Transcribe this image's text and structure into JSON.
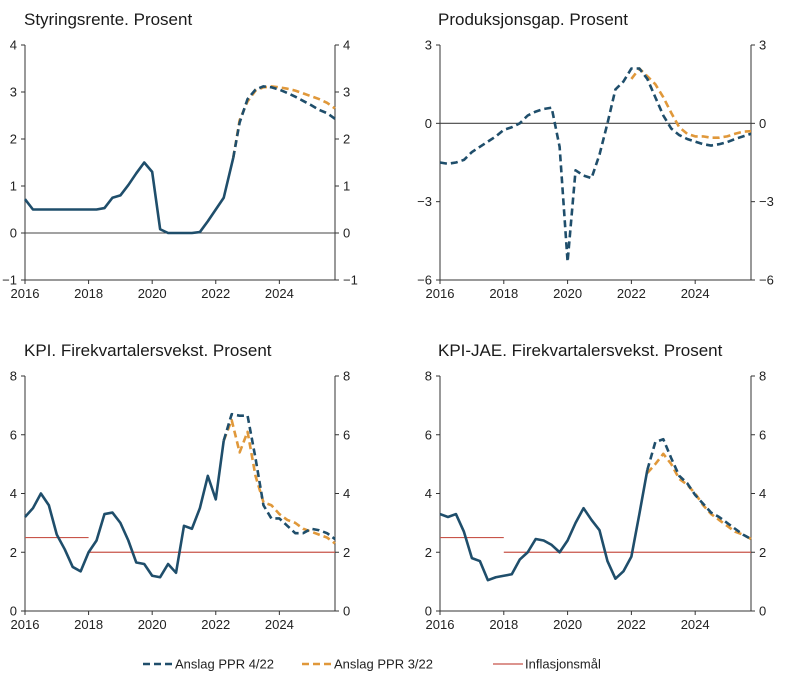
{
  "legend": [
    {
      "label": "Anslag PPR 4/22",
      "color": "#1f4e6b",
      "dash": true
    },
    {
      "label": "Anslag PPR 3/22",
      "color": "#e0983a",
      "dash": true
    },
    {
      "label": "Inflasjonsmål",
      "color": "#c8554a",
      "dash": false
    }
  ],
  "chart_data": [
    {
      "type": "line",
      "title": "Styringsrente. Prosent",
      "xlim": [
        2016,
        2025.75
      ],
      "ylim": [
        -1,
        4
      ],
      "yticks": [
        -1,
        0,
        1,
        2,
        3,
        4
      ],
      "xticks": [
        2016,
        2018,
        2020,
        2022,
        2024
      ],
      "zero_line": true,
      "series": [
        {
          "name": "Anslag PPR 3/22",
          "color": "#e0983a",
          "dash": true,
          "x": [
            2022.55,
            2022.75,
            2023.0,
            2023.25,
            2023.5,
            2023.75,
            2024.0,
            2024.25,
            2024.5,
            2024.75,
            2025.0,
            2025.25,
            2025.5,
            2025.75
          ],
          "y": [
            1.6,
            2.4,
            2.8,
            3.03,
            3.1,
            3.12,
            3.1,
            3.07,
            3.03,
            2.97,
            2.91,
            2.85,
            2.77,
            2.65
          ]
        },
        {
          "name": "Anslag PPR 4/22",
          "color": "#1f4e6b",
          "dash": true,
          "x": [
            2022.55,
            2022.75,
            2023.0,
            2023.25,
            2023.5,
            2023.75,
            2024.0,
            2024.25,
            2024.5,
            2024.75,
            2025.0,
            2025.25,
            2025.5,
            2025.75
          ],
          "y": [
            1.6,
            2.35,
            2.85,
            3.05,
            3.12,
            3.1,
            3.05,
            2.98,
            2.9,
            2.81,
            2.72,
            2.62,
            2.55,
            2.43
          ]
        },
        {
          "name": "",
          "color": "#1f4e6b",
          "dash": false,
          "x": [
            2016.0,
            2016.25,
            2016.5,
            2016.75,
            2017.0,
            2017.25,
            2017.5,
            2017.75,
            2018.0,
            2018.25,
            2018.5,
            2018.75,
            2019.0,
            2019.25,
            2019.5,
            2019.75,
            2020.0,
            2020.25,
            2020.5,
            2020.75,
            2021.0,
            2021.25,
            2021.5,
            2021.75,
            2022.0,
            2022.25,
            2022.55
          ],
          "y": [
            0.72,
            0.5,
            0.5,
            0.5,
            0.5,
            0.5,
            0.5,
            0.5,
            0.5,
            0.5,
            0.53,
            0.75,
            0.8,
            1.02,
            1.27,
            1.5,
            1.3,
            0.08,
            0.0,
            0.0,
            0.0,
            0.0,
            0.02,
            0.25,
            0.5,
            0.75,
            1.6
          ]
        }
      ]
    },
    {
      "type": "line",
      "title": "Produksjonsgap. Prosent",
      "xlim": [
        2016,
        2025.75
      ],
      "ylim": [
        -6,
        3
      ],
      "yticks": [
        -6,
        -3,
        0,
        3
      ],
      "xticks": [
        2016,
        2018,
        2020,
        2022,
        2024
      ],
      "zero_line": true,
      "series": [
        {
          "name": "Anslag PPR 3/22",
          "color": "#e0983a",
          "dash": true,
          "x": [
            2022.0,
            2022.25,
            2022.5,
            2022.75,
            2023.0,
            2023.25,
            2023.5,
            2023.75,
            2024.0,
            2024.25,
            2024.5,
            2024.75,
            2025.0,
            2025.25,
            2025.5,
            2025.75
          ],
          "y": [
            1.7,
            2.1,
            1.8,
            1.5,
            1.0,
            0.4,
            -0.15,
            -0.4,
            -0.5,
            -0.5,
            -0.55,
            -0.55,
            -0.5,
            -0.4,
            -0.32,
            -0.3
          ]
        },
        {
          "name": "Anslag PPR 4/22",
          "color": "#1f4e6b",
          "dash": true,
          "x": [
            2016.0,
            2016.25,
            2016.5,
            2016.75,
            2017.0,
            2017.25,
            2017.5,
            2017.75,
            2018.0,
            2018.25,
            2018.5,
            2018.75,
            2019.0,
            2019.25,
            2019.5,
            2019.75,
            2020.0,
            2020.25,
            2020.5,
            2020.75,
            2021.0,
            2021.25,
            2021.5,
            2021.75,
            2022.0,
            2022.25,
            2022.5,
            2022.75,
            2023.0,
            2023.25,
            2023.5,
            2023.75,
            2024.0,
            2024.25,
            2024.5,
            2024.75,
            2025.0,
            2025.25,
            2025.5,
            2025.75
          ],
          "y": [
            -1.5,
            -1.55,
            -1.5,
            -1.4,
            -1.1,
            -0.9,
            -0.7,
            -0.5,
            -0.25,
            -0.15,
            0.0,
            0.3,
            0.45,
            0.55,
            0.6,
            -0.9,
            -5.3,
            -1.8,
            -2.0,
            -2.1,
            -1.2,
            0.0,
            1.3,
            1.6,
            2.1,
            2.1,
            1.7,
            1.0,
            0.3,
            -0.2,
            -0.45,
            -0.6,
            -0.7,
            -0.8,
            -0.85,
            -0.8,
            -0.72,
            -0.6,
            -0.5,
            -0.4
          ]
        }
      ]
    },
    {
      "type": "line",
      "title": "KPI. Firekvartalersvekst. Prosent",
      "xlim": [
        2016,
        2025.75
      ],
      "ylim": [
        0,
        8
      ],
      "yticks": [
        0,
        2,
        4,
        6,
        8
      ],
      "xticks": [
        2016,
        2018,
        2020,
        2022,
        2024
      ],
      "zero_line": false,
      "target_lines": [
        {
          "x0": 2016.0,
          "x1": 2018.0,
          "y": 2.5
        },
        {
          "x0": 2018.0,
          "x1": 2025.75,
          "y": 2.0
        }
      ],
      "series": [
        {
          "name": "Anslag PPR 3/22",
          "color": "#e0983a",
          "dash": true,
          "x": [
            2022.25,
            2022.5,
            2022.75,
            2023.0,
            2023.25,
            2023.5,
            2023.75,
            2024.0,
            2024.25,
            2024.5,
            2024.75,
            2025.0,
            2025.25,
            2025.5,
            2025.75
          ],
          "y": [
            5.8,
            6.5,
            5.4,
            6.1,
            4.6,
            3.7,
            3.6,
            3.3,
            3.1,
            3.0,
            2.8,
            2.7,
            2.6,
            2.5,
            2.3
          ]
        },
        {
          "name": "Anslag PPR 4/22",
          "color": "#1f4e6b",
          "dash": true,
          "x": [
            2022.25,
            2022.5,
            2022.75,
            2023.0,
            2023.25,
            2023.5,
            2023.75,
            2024.0,
            2024.25,
            2024.5,
            2024.75,
            2025.0,
            2025.25,
            2025.5,
            2025.75
          ],
          "y": [
            5.8,
            6.7,
            6.65,
            6.65,
            5.2,
            3.6,
            3.15,
            3.15,
            2.9,
            2.65,
            2.65,
            2.8,
            2.75,
            2.65,
            2.45
          ]
        },
        {
          "name": "",
          "color": "#1f4e6b",
          "dash": false,
          "x": [
            2016.0,
            2016.25,
            2016.5,
            2016.75,
            2017.0,
            2017.25,
            2017.5,
            2017.75,
            2018.0,
            2018.25,
            2018.5,
            2018.75,
            2019.0,
            2019.25,
            2019.5,
            2019.75,
            2020.0,
            2020.25,
            2020.5,
            2020.75,
            2021.0,
            2021.25,
            2021.5,
            2021.75,
            2022.0,
            2022.25
          ],
          "y": [
            3.2,
            3.5,
            4.0,
            3.6,
            2.6,
            2.1,
            1.5,
            1.35,
            2.0,
            2.4,
            3.3,
            3.35,
            3.0,
            2.4,
            1.65,
            1.6,
            1.2,
            1.15,
            1.6,
            1.3,
            2.9,
            2.8,
            3.5,
            4.6,
            3.8,
            5.8
          ]
        }
      ]
    },
    {
      "type": "line",
      "title": "KPI-JAE. Firekvartalersvekst. Prosent",
      "xlim": [
        2016,
        2025.75
      ],
      "ylim": [
        0,
        8
      ],
      "yticks": [
        0,
        2,
        4,
        6,
        8
      ],
      "xticks": [
        2016,
        2018,
        2020,
        2022,
        2024
      ],
      "zero_line": false,
      "target_lines": [
        {
          "x0": 2016.0,
          "x1": 2018.0,
          "y": 2.5
        },
        {
          "x0": 2018.0,
          "x1": 2025.75,
          "y": 2.0
        }
      ],
      "series": [
        {
          "name": "Anslag PPR 3/22",
          "color": "#e0983a",
          "dash": true,
          "x": [
            2022.5,
            2022.75,
            2023.0,
            2023.25,
            2023.5,
            2023.75,
            2024.0,
            2024.25,
            2024.5,
            2024.75,
            2025.0,
            2025.25,
            2025.5,
            2025.75
          ],
          "y": [
            4.7,
            5.0,
            5.35,
            5.0,
            4.5,
            4.3,
            4.0,
            3.6,
            3.3,
            3.1,
            2.9,
            2.7,
            2.6,
            2.45
          ]
        },
        {
          "name": "Anslag PPR 4/22",
          "color": "#1f4e6b",
          "dash": true,
          "x": [
            2022.5,
            2022.75,
            2023.0,
            2023.25,
            2023.5,
            2023.75,
            2024.0,
            2024.25,
            2024.5,
            2024.75,
            2025.0,
            2025.25,
            2025.5,
            2025.75
          ],
          "y": [
            4.8,
            5.75,
            5.85,
            5.2,
            4.6,
            4.35,
            3.95,
            3.65,
            3.35,
            3.2,
            3.0,
            2.8,
            2.6,
            2.45
          ]
        },
        {
          "name": "",
          "color": "#1f4e6b",
          "dash": false,
          "x": [
            2016.0,
            2016.25,
            2016.5,
            2016.75,
            2017.0,
            2017.25,
            2017.5,
            2017.75,
            2018.0,
            2018.25,
            2018.5,
            2018.75,
            2019.0,
            2019.25,
            2019.5,
            2019.75,
            2020.0,
            2020.25,
            2020.5,
            2020.75,
            2021.0,
            2021.25,
            2021.5,
            2021.75,
            2022.0,
            2022.25,
            2022.5
          ],
          "y": [
            3.3,
            3.2,
            3.3,
            2.7,
            1.8,
            1.7,
            1.05,
            1.15,
            1.2,
            1.25,
            1.75,
            2.0,
            2.45,
            2.4,
            2.25,
            2.0,
            2.4,
            3.0,
            3.5,
            3.1,
            2.75,
            1.7,
            1.1,
            1.35,
            1.85,
            3.3,
            4.8
          ]
        }
      ]
    }
  ]
}
